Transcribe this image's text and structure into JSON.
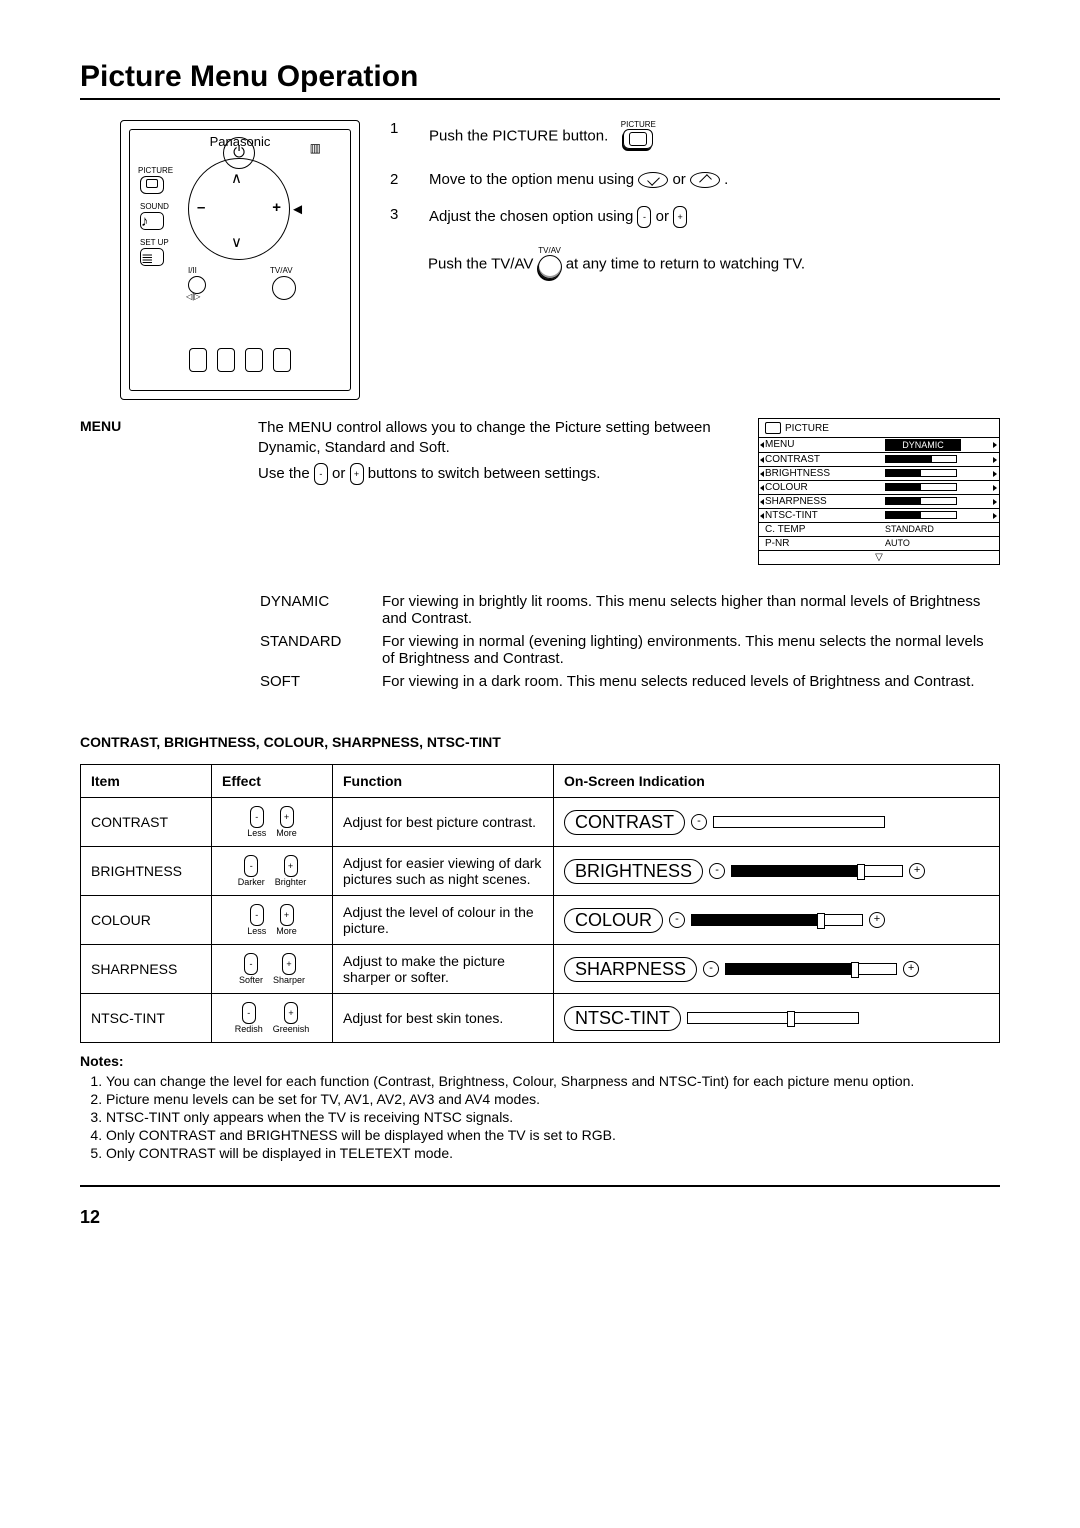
{
  "title": "Picture Menu Operation",
  "remote": {
    "brand": "Panasonic",
    "labels": {
      "picture": "PICTURE",
      "sound": "SOUND",
      "setup": "SET UP",
      "tvav": "TV/AV",
      "iii": "I/II"
    }
  },
  "steps": [
    {
      "n": "1",
      "text": "Push the PICTURE button.",
      "icon_label": "PICTURE"
    },
    {
      "n": "2",
      "text": "Move to the option menu using ",
      "tail": " or ",
      "end": "."
    },
    {
      "n": "3",
      "text": "Adjust the chosen option using ",
      "tail": " or "
    }
  ],
  "tvav_line_pre": "Push the TV/AV ",
  "tvav_line_label": "TV/AV",
  "tvav_line_post": " at any time to return to watching TV.",
  "menu_label": "MENU",
  "menu_desc1": "The MENU control allows you to change the Picture setting between Dynamic, Standard and Soft.",
  "menu_desc2a": "Use the ",
  "menu_desc2b": " or ",
  "menu_desc2c": " buttons to switch between settings.",
  "osd": {
    "title": "PICTURE",
    "rows": [
      {
        "l": "MENU",
        "type": "sel",
        "val": "DYNAMIC"
      },
      {
        "l": "CONTRAST",
        "type": "bar",
        "fill": 65
      },
      {
        "l": "BRIGHTNESS",
        "type": "bar",
        "fill": 50
      },
      {
        "l": "COLOUR",
        "type": "bar",
        "fill": 50
      },
      {
        "l": "SHARPNESS",
        "type": "bar",
        "fill": 50
      },
      {
        "l": "NTSC-TINT",
        "type": "bar",
        "fill": 50
      },
      {
        "l": "C. TEMP",
        "type": "text",
        "val": "STANDARD"
      },
      {
        "l": "P-NR",
        "type": "text",
        "val": "AUTO"
      }
    ]
  },
  "modes": [
    {
      "k": "DYNAMIC",
      "v": "For viewing in brightly lit rooms. This menu selects higher than normal levels of Brightness and Contrast."
    },
    {
      "k": "STANDARD",
      "v": "For viewing in normal (evening lighting) environments. This menu selects the normal levels of Brightness and Contrast."
    },
    {
      "k": "SOFT",
      "v": "For viewing in a dark room. This menu selects reduced levels of Brightness and Contrast."
    }
  ],
  "subhead": "CONTRAST, BRIGHTNESS, COLOUR, SHARPNESS, NTSC-TINT",
  "table": {
    "headers": [
      "Item",
      "Effect",
      "Function",
      "On-Screen Indication"
    ],
    "rows": [
      {
        "item": "CONTRAST",
        "effL": "Less",
        "effR": "More",
        "fn": "Adjust for best picture contrast.",
        "osi_label": "CONTRAST",
        "fill": 0,
        "handle": 0,
        "minus": true,
        "plus": false
      },
      {
        "item": "BRIGHTNESS",
        "effL": "Darker",
        "effR": "Brighter",
        "fn": "Adjust for easier viewing of dark pictures such as night scenes.",
        "osi_label": "BRIGHTNESS",
        "fill": 75,
        "handle": 75,
        "minus": true,
        "plus": true
      },
      {
        "item": "COLOUR",
        "effL": "Less",
        "effR": "More",
        "fn": "Adjust the level of colour in the picture.",
        "osi_label": "COLOUR",
        "fill": 75,
        "handle": 75,
        "minus": true,
        "plus": true
      },
      {
        "item": "SHARPNESS",
        "effL": "Softer",
        "effR": "Sharper",
        "fn": "Adjust to make the picture sharper or softer.",
        "osi_label": "SHARPNESS",
        "fill": 75,
        "handle": 75,
        "minus": true,
        "plus": true
      },
      {
        "item": "NTSC-TINT",
        "effL": "Redish",
        "effR": "Greenish",
        "fn": "Adjust for best skin tones.",
        "osi_label": "NTSC-TINT",
        "fill": 0,
        "handle": 60,
        "minus": false,
        "plus": false
      }
    ]
  },
  "notes_label": "Notes:",
  "notes": [
    "You can change the level for each function (Contrast, Brightness, Colour, Sharpness and NTSC-Tint) for each picture menu option.",
    "Picture menu levels can be set for TV, AV1, AV2, AV3 and AV4 modes.",
    "NTSC-TINT only appears when the TV is receiving NTSC signals.",
    "Only CONTRAST and BRIGHTNESS will be displayed when the TV is set to RGB.",
    "Only CONTRAST will be displayed in TELETEXT mode."
  ],
  "pagenum": "12"
}
